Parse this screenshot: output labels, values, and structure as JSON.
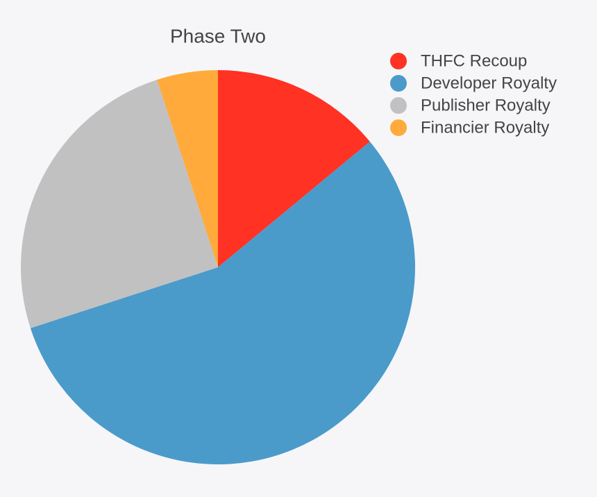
{
  "chart_data": {
    "type": "pie",
    "title": "Phase Two",
    "categories": [
      "THFC Recoup",
      "Developer Royalty",
      "Publisher Royalty",
      "Financier Royalty"
    ],
    "values": [
      14,
      56,
      25,
      5
    ],
    "colors": [
      "#ff3223",
      "#4a9bca",
      "#c1c1c1",
      "#ffaa3b"
    ],
    "legend": "top-right"
  }
}
